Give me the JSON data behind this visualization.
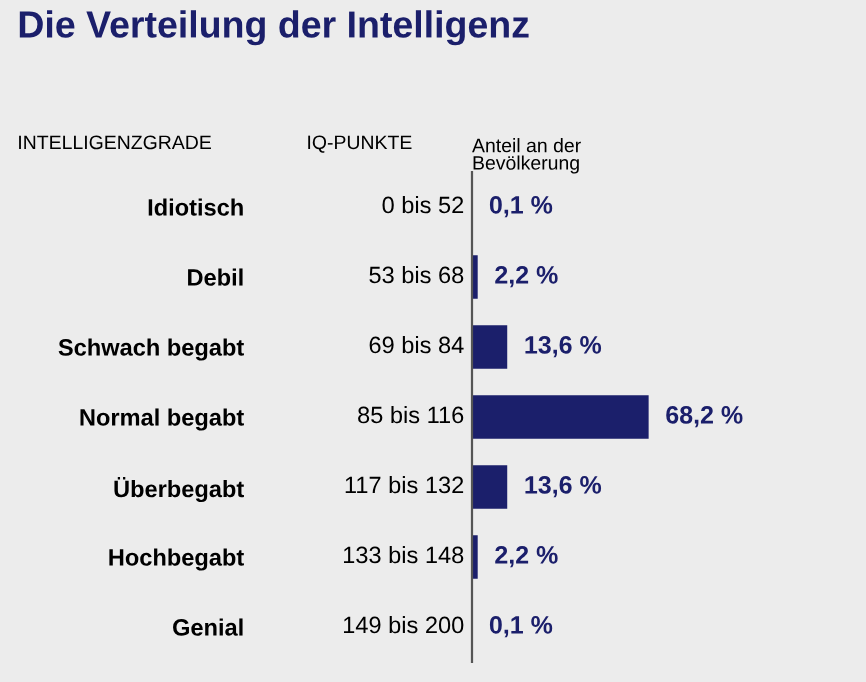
{
  "chart_data": {
    "type": "bar",
    "orientation": "horizontal",
    "title": "Die Verteilung der Intelligenz",
    "xlabel": "Anteil an der\nBevölkerung",
    "categories": [
      "Idiotisch",
      "Debil",
      "Schwach begabt",
      "Normal begabt",
      "Überbegabt",
      "Hochbegabt",
      "Genial"
    ],
    "values": [
      0.1,
      2.2,
      13.6,
      68.2,
      13.6,
      2.2,
      0.1
    ],
    "color": "#1b1f6b",
    "value_labels": [
      "0,1 %",
      "2,2 %",
      "13,6 %",
      "68,2 %",
      "13,6 %",
      "2,2 %",
      "0,1 %"
    ],
    "annotations": [
      "INTELLIGENZGRADE",
      "IQ-PUNKTE",
      "0 bis 52",
      "53 bis 68",
      "69 bis 84",
      "85 bis 116",
      "117 bis 132",
      "133 bis 148",
      "149 bis 200"
    ],
    "tick_labels": "y",
    "grid": false,
    "legend": false
  }
}
